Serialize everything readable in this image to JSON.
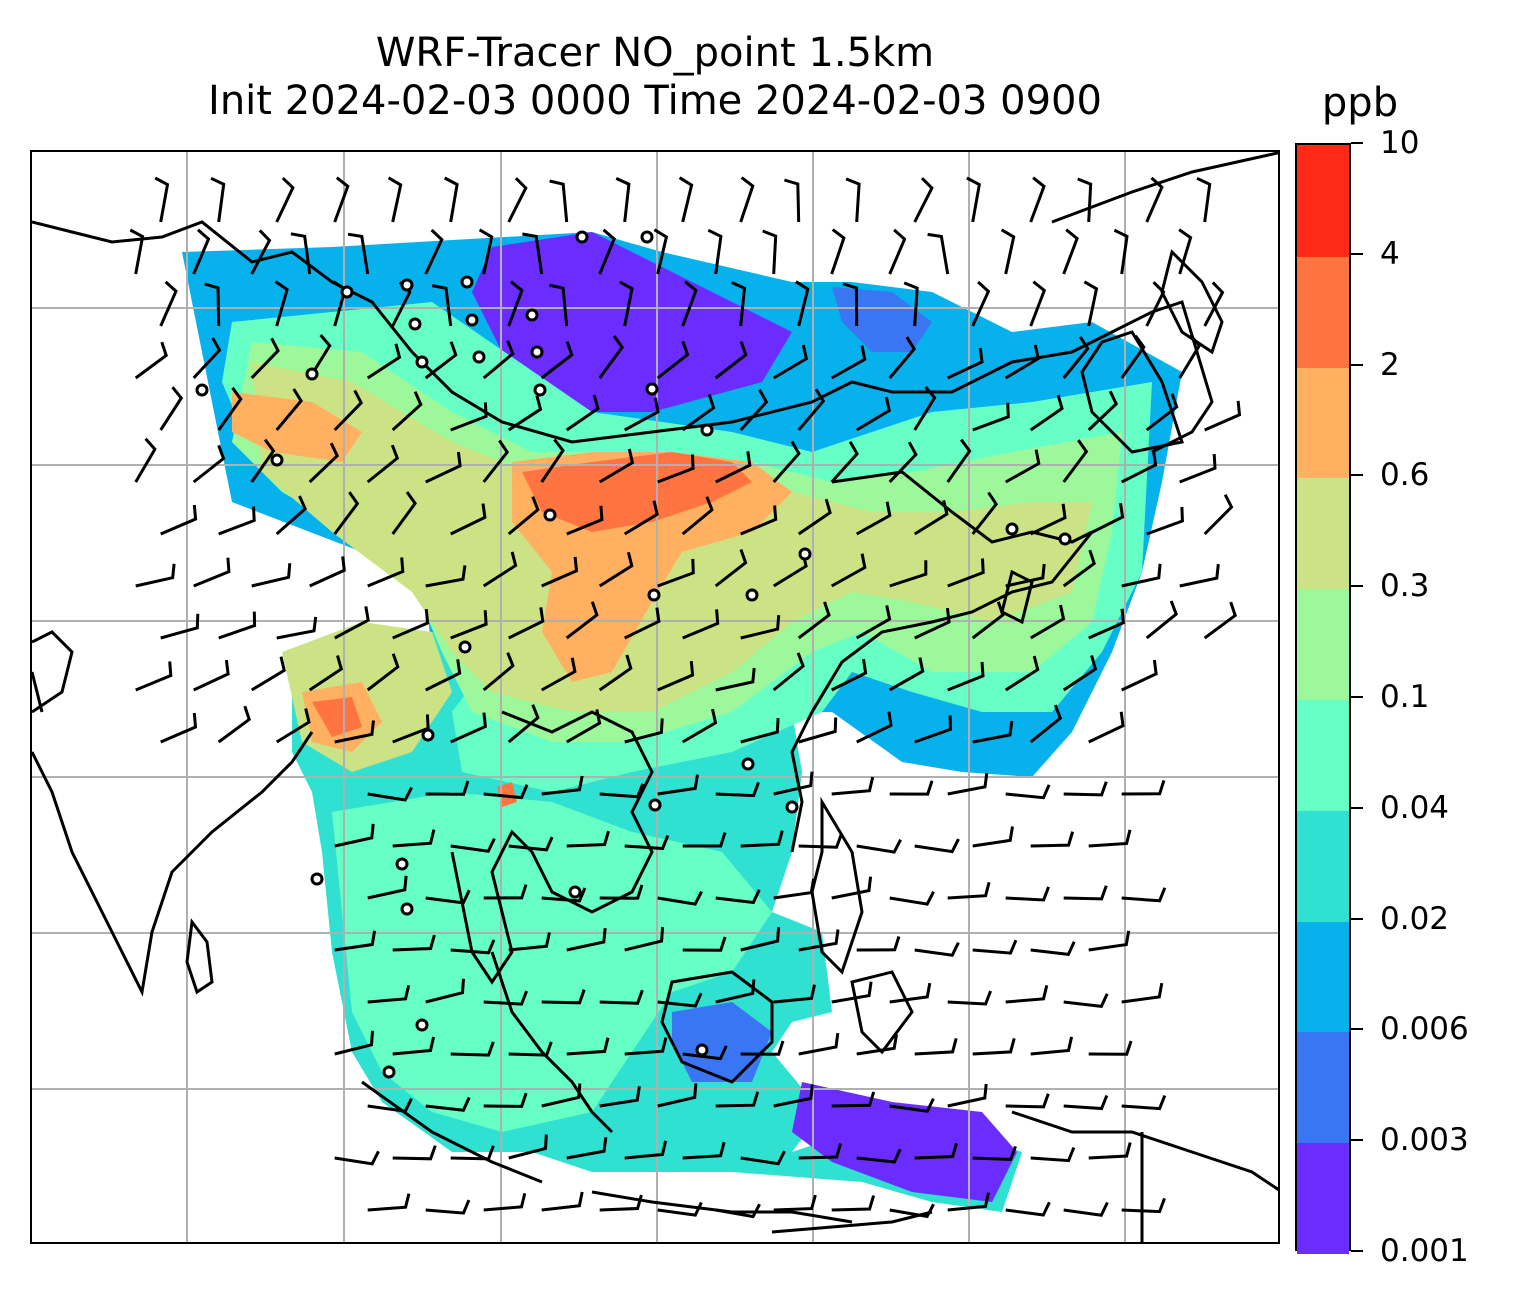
{
  "title": {
    "line1": "WRF-Tracer NO_point 1.5km",
    "line2": "Init 2024-02-03 0000 Time 2024-02-03 0900"
  },
  "colorbar": {
    "unit": "ppb",
    "levels": [
      "0.001",
      "0.003",
      "0.006",
      "0.02",
      "0.04",
      "0.1",
      "0.3",
      "0.6",
      "2",
      "4",
      "10"
    ],
    "colors": [
      "#6a2cff",
      "#3a76f3",
      "#07b1ec",
      "#30e0d0",
      "#66ffc6",
      "#9cf89a",
      "#cbe385",
      "#ffb060",
      "#ff7440",
      "#ff2a18"
    ]
  },
  "map": {
    "gridlines": true,
    "coastline_color": "#000000",
    "gridline_color": "#b0b0b0",
    "wind_barbs": true,
    "calm_markers": true
  }
}
